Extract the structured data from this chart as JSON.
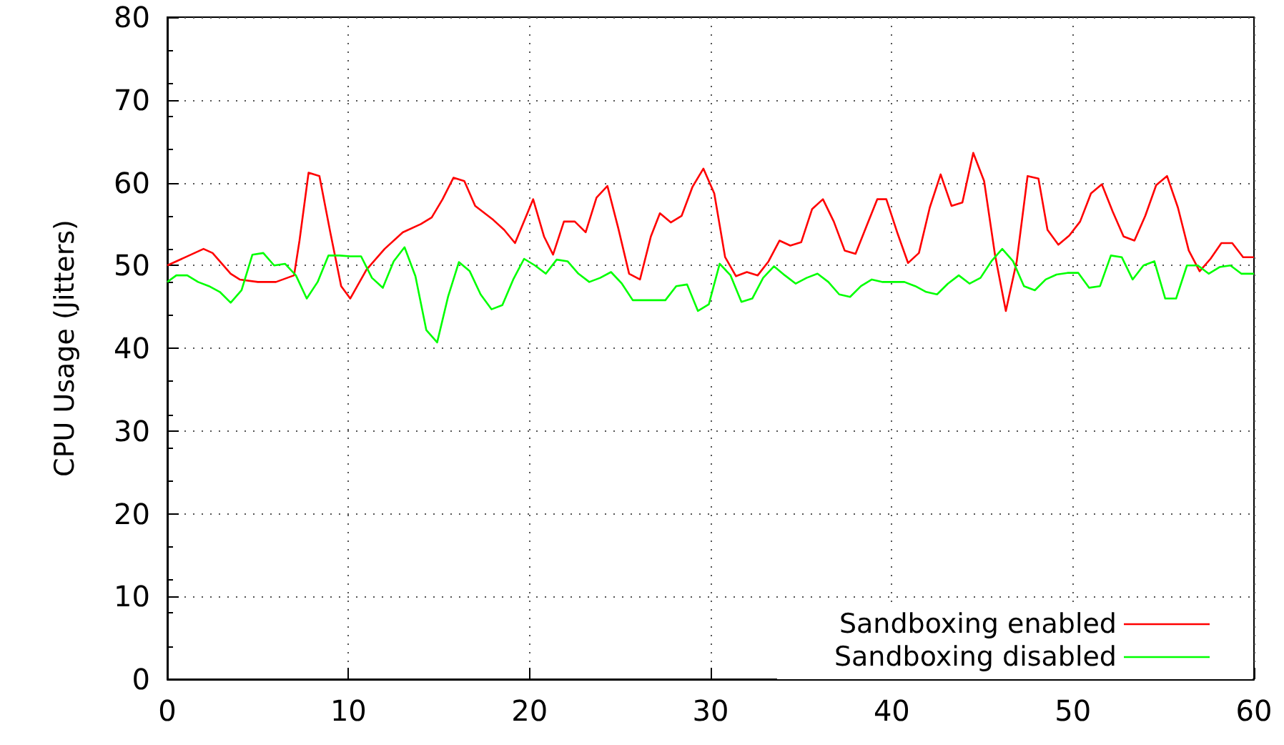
{
  "chart_data": {
    "type": "line",
    "ylabel": "CPU Usage (Jitters)",
    "xlim": [
      0,
      60
    ],
    "xticks": [
      0,
      10,
      20,
      30,
      40,
      50,
      60
    ],
    "ylim": [
      0,
      80
    ],
    "yticks": [
      0,
      10,
      20,
      30,
      40,
      50,
      60,
      70,
      80
    ],
    "grid": true,
    "legend": "bottom right",
    "marker": "none",
    "line_style": "solid",
    "series": [
      {
        "name": "Sandboxing enabled",
        "color": "#ff0000",
        "x": [
          0,
          2,
          2.5,
          3.5,
          4,
          5,
          6,
          7,
          7.3,
          7.8,
          8.4,
          9,
          9.6,
          10.1,
          11,
          12,
          13,
          14,
          14.6,
          15.2,
          15.8,
          16.4,
          17,
          18,
          18.6,
          19.2,
          20.2,
          20.8,
          21.3,
          21.9,
          22.5,
          23.1,
          23.7,
          24.3,
          24.9,
          25.5,
          26.1,
          26.7,
          27.2,
          27.8,
          28.4,
          29,
          29.6,
          30.2,
          30.8,
          31.4,
          32,
          32.6,
          33.2,
          33.8,
          34.4,
          35,
          35.6,
          36.2,
          36.8,
          37.4,
          38,
          38.6,
          39.2,
          39.7,
          40.3,
          40.9,
          41.5,
          42.1,
          42.7,
          43.3,
          43.9,
          44.5,
          45.1,
          45.7,
          46.3,
          46.9,
          47.5,
          48.1,
          48.6,
          49.2,
          49.8,
          50.4,
          51,
          51.6,
          52.2,
          52.8,
          53.4,
          54,
          54.6,
          55.2,
          55.8,
          56.4,
          57,
          57.6,
          58.2,
          58.8,
          59.4,
          60
        ],
        "values": [
          50,
          52,
          51.5,
          49,
          48.3,
          48,
          48,
          48.8,
          53,
          61.2,
          60.8,
          54,
          47.5,
          46,
          49.5,
          52,
          54,
          55,
          55.8,
          58,
          60.6,
          60.2,
          57.2,
          55.5,
          54.3,
          52.7,
          58,
          53.5,
          51.3,
          55.3,
          55.3,
          54,
          58.2,
          59.6,
          54.5,
          49,
          48.3,
          53.5,
          56.3,
          55.2,
          56,
          59.5,
          61.7,
          58.7,
          51,
          48.7,
          49.2,
          48.8,
          50.5,
          53,
          52.4,
          52.8,
          56.8,
          58,
          55.3,
          51.8,
          51.4,
          54.7,
          58,
          58,
          54,
          50.3,
          51.5,
          57,
          61,
          57.2,
          57.6,
          63.6,
          60.2,
          51.3,
          44.5,
          50.5,
          60.8,
          60.5,
          54.3,
          52.5,
          53.6,
          55.3,
          58.7,
          59.8,
          56.5,
          53.5,
          53,
          56,
          59.7,
          60.8,
          57,
          51.8,
          49.3,
          50.8,
          52.7,
          52.7,
          51,
          51
        ]
      },
      {
        "name": "Sandboxing disabled",
        "color": "#00ff00",
        "x": [
          0,
          0.5,
          1.1,
          1.7,
          2.3,
          2.9,
          3.5,
          4.1,
          4.7,
          5.3,
          5.9,
          6.5,
          7.1,
          7.7,
          8.3,
          8.9,
          9.5,
          10.1,
          10.7,
          11.3,
          11.9,
          12.5,
          13.1,
          13.7,
          14.3,
          14.9,
          15.5,
          16.1,
          16.7,
          17.3,
          17.9,
          18.5,
          19.1,
          19.7,
          20.3,
          20.9,
          21.5,
          22.1,
          22.7,
          23.3,
          23.9,
          24.5,
          25.1,
          25.7,
          27.5,
          28.1,
          28.7,
          29.3,
          29.9,
          30.5,
          31.1,
          31.7,
          32.3,
          32.9,
          33.5,
          34.1,
          34.7,
          35.3,
          35.9,
          36.5,
          37.1,
          37.7,
          38.3,
          38.9,
          39.5,
          40.7,
          41.3,
          41.9,
          42.5,
          43.1,
          43.7,
          44.3,
          44.9,
          45.5,
          46.1,
          46.7,
          47.3,
          47.9,
          48.5,
          49.1,
          49.7,
          50.3,
          50.9,
          51.5,
          52.1,
          52.7,
          53.3,
          53.9,
          54.5,
          55.1,
          55.7,
          56.3,
          56.9,
          57.5,
          58.1,
          58.7,
          59.3,
          60
        ],
        "values": [
          48,
          48.8,
          48.8,
          48,
          47.5,
          46.8,
          45.5,
          47,
          51.3,
          51.5,
          50,
          50.2,
          48.8,
          46,
          48,
          51.2,
          51.2,
          51.1,
          51.1,
          48.5,
          47.3,
          50.5,
          52.2,
          48.7,
          42.2,
          40.7,
          46.2,
          50.4,
          49.3,
          46.5,
          44.7,
          45.2,
          48.3,
          50.8,
          50,
          49,
          50.7,
          50.5,
          49,
          48,
          48.5,
          49.2,
          47.8,
          45.8,
          45.8,
          47.5,
          47.7,
          44.5,
          45.3,
          50.2,
          48.8,
          45.6,
          46,
          48.5,
          49.9,
          48.8,
          47.8,
          48.5,
          49,
          48,
          46.5,
          46.2,
          47.5,
          48.3,
          48,
          48,
          47.5,
          46.8,
          46.5,
          47.8,
          48.8,
          47.8,
          48.5,
          50.5,
          52,
          50.5,
          47.5,
          47,
          48.3,
          48.9,
          49.1,
          49.1,
          47.3,
          47.5,
          51.2,
          51,
          48.3,
          50,
          50.5,
          46,
          46,
          50,
          50,
          49,
          49.8,
          50,
          49,
          49
        ]
      }
    ]
  }
}
